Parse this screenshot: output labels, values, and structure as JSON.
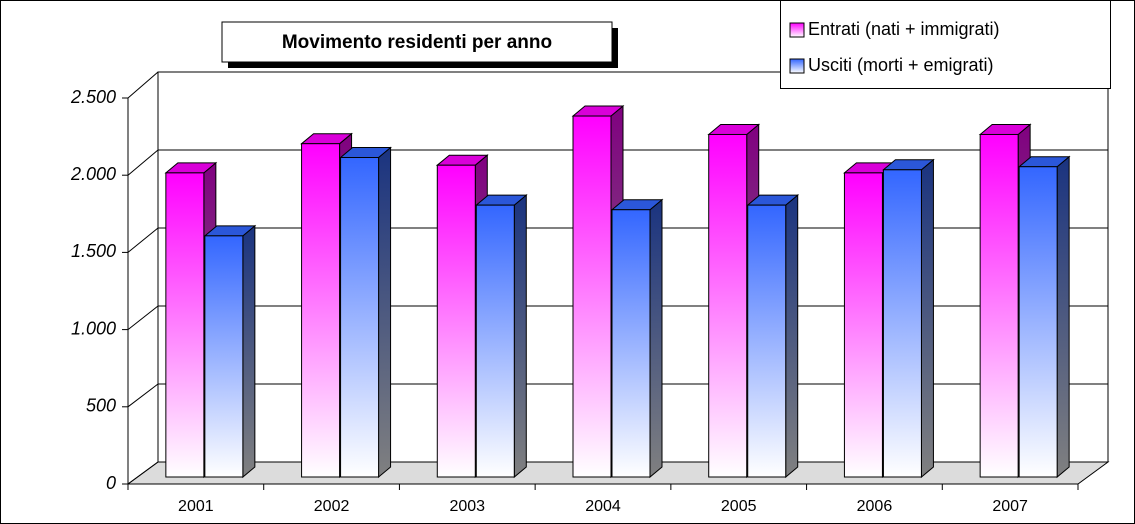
{
  "chart_data": {
    "type": "bar3d",
    "title": "Movimento residenti per anno",
    "categories": [
      "2001",
      "2002",
      "2003",
      "2004",
      "2005",
      "2006",
      "2007"
    ],
    "series": [
      {
        "name": "Entrati (nati + immigrati)",
        "color": "#ff00ff",
        "values": [
          1980,
          2170,
          2030,
          2350,
          2230,
          1980,
          2230
        ]
      },
      {
        "name": "Usciti (morti + emigrati)",
        "color": "#3366ff",
        "values": [
          1570,
          2080,
          1770,
          1740,
          1770,
          2000,
          2020
        ]
      }
    ],
    "ylim": [
      0,
      2500
    ],
    "yticks": [
      0,
      500,
      {
        "value": 1000,
        "label": "1.000"
      },
      {
        "value": 1500,
        "label": "1.500"
      },
      {
        "value": 2000,
        "label": "2.000"
      },
      {
        "value": 2500,
        "label": "2.500"
      }
    ],
    "grid": true,
    "legend": "top-right"
  }
}
